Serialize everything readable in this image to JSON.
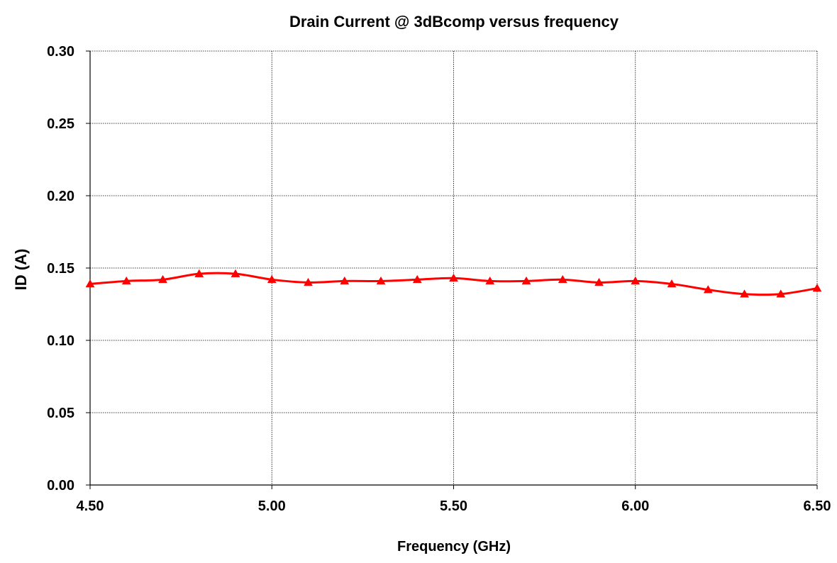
{
  "chart_data": {
    "type": "line",
    "title": "Drain Current @ 3dBcomp versus frequency",
    "xlabel": "Frequency (GHz)",
    "ylabel": "ID (A)",
    "xlim": [
      4.5,
      6.5
    ],
    "ylim": [
      0.0,
      0.3
    ],
    "xticks": [
      "4.50",
      "5.00",
      "5.50",
      "6.00",
      "6.50"
    ],
    "yticks": [
      "0.00",
      "0.05",
      "0.10",
      "0.15",
      "0.20",
      "0.25",
      "0.30"
    ],
    "grid": true,
    "series": [
      {
        "color": "#ff0000",
        "marker": "triangle",
        "x": [
          4.5,
          4.6,
          4.7,
          4.8,
          4.9,
          5.0,
          5.1,
          5.2,
          5.3,
          5.4,
          5.5,
          5.6,
          5.7,
          5.8,
          5.9,
          6.0,
          6.1,
          6.2,
          6.3,
          6.4,
          6.5
        ],
        "y": [
          0.139,
          0.141,
          0.142,
          0.146,
          0.146,
          0.142,
          0.14,
          0.141,
          0.141,
          0.142,
          0.143,
          0.141,
          0.141,
          0.142,
          0.14,
          0.141,
          0.139,
          0.135,
          0.132,
          0.132,
          0.136
        ]
      }
    ]
  }
}
